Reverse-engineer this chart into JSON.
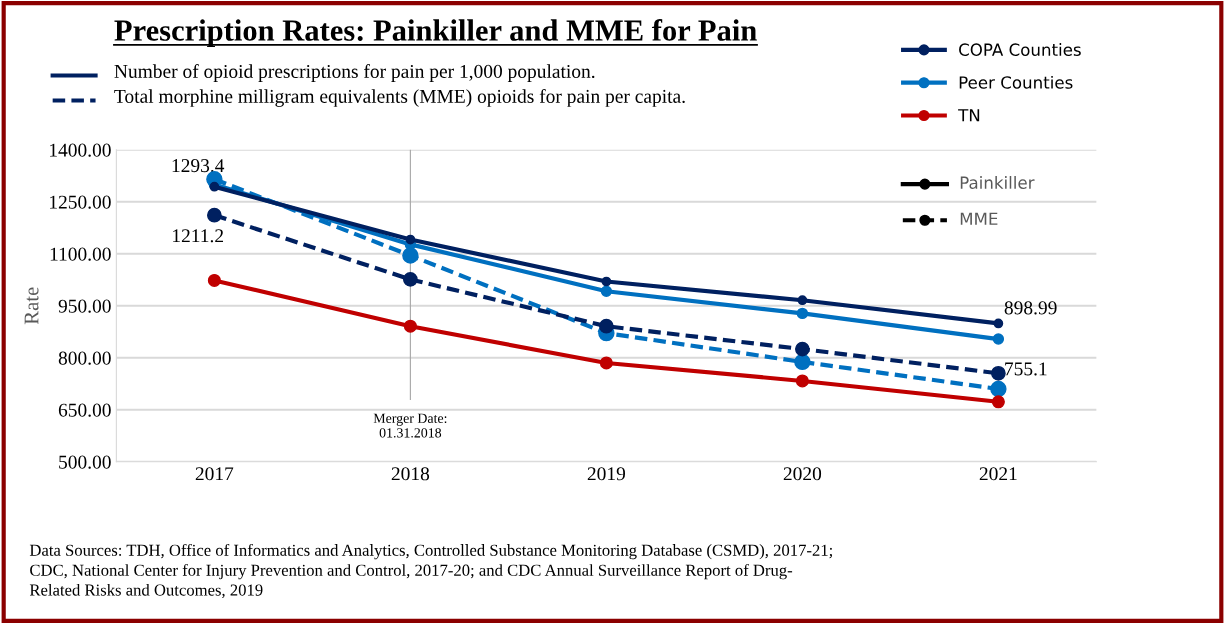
{
  "chart_data": {
    "type": "line",
    "title": "Prescription Rates: Painkiller and MME for Pain",
    "subtitle": "Number of opioid prescriptions for pain per 1,000 population.\nTotal morphine milligram equivalents (MME) opioids for pain per capita.",
    "ylabel": "Rate",
    "categories": [
      "2017",
      "2018",
      "2019",
      "2020",
      "2021"
    ],
    "series": [
      {
        "name": "COPA Counties",
        "color": "#002060",
        "line_style": "solid",
        "values": [
          1293.4,
          1141,
          1020,
          966,
          898.99
        ],
        "value_labels": [
          "1293.4",
          null,
          null,
          null,
          "898.99"
        ]
      },
      {
        "name": "Peer Counties",
        "color": "#0070c0",
        "line_style": "solid",
        "values": [
          1300,
          1127,
          992,
          928,
          854
        ]
      },
      {
        "name": "TN",
        "color": "#c00000",
        "line_style": "solid",
        "values": [
          1023,
          891,
          785,
          733,
          673
        ]
      },
      {
        "color": "#002060",
        "line_style": "dashed",
        "values": [
          1211.2,
          1026,
          891,
          825,
          755.1
        ],
        "value_labels": [
          "1211.2",
          null,
          null,
          null,
          "755.1"
        ]
      },
      {
        "color": "#0070c0",
        "line_style": "dashed",
        "values": [
          1315,
          1095,
          871,
          788,
          710
        ]
      }
    ],
    "ylim": [
      500,
      1400
    ],
    "yticks": [
      {
        "value": 500,
        "label": "500.00"
      },
      {
        "value": 650,
        "label": "650.00"
      },
      {
        "value": 800,
        "label": "800.00"
      },
      {
        "value": 950,
        "label": "950.00"
      },
      {
        "value": 1100,
        "label": "1100.00"
      },
      {
        "value": 1250,
        "label": "1250.00"
      },
      {
        "value": 1400,
        "label": "1400.00"
      }
    ],
    "grid": "y",
    "marker": "circle",
    "legend": "top right",
    "ref_lines": [
      {
        "axis": "x",
        "value": "2018",
        "label": "Merger Date:\n01.31.2018",
        "color": "#a6a6a6"
      }
    ],
    "annotations": [
      "Painkiller",
      "MME",
      "Data Sources: TDH, Office of Informatics and Analytics, Controlled Substance Monitoring Database (CSMD), 2017-21;\nCDC, National Center for Injury Prevention and Control, 2017-20; and CDC Annual Surveillance Report of Drug-\nRelated Risks and Outcomes, 2019"
    ]
  }
}
